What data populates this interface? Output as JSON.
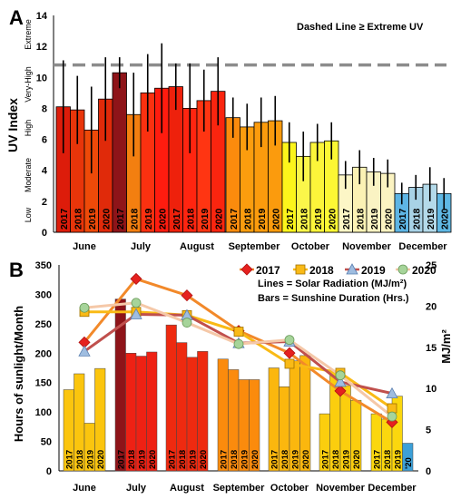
{
  "chart_data": [
    {
      "panel_label": "A",
      "type": "bar",
      "note": "Dashed Line ≥ Extreme UV",
      "ylabel": "UV Index",
      "ylim": [
        0,
        14
      ],
      "yticks": [
        0,
        2,
        4,
        6,
        8,
        10,
        12,
        14
      ],
      "uv_categories": [
        "Low",
        "Moderate",
        "High",
        "Very-High",
        "Extreme"
      ],
      "threshold": 10.8,
      "grid": false,
      "months": [
        "June",
        "July",
        "August",
        "September",
        "October",
        "November",
        "December"
      ],
      "years": [
        "2017",
        "2018",
        "2019",
        "2020"
      ],
      "series": [
        {
          "name": "2017",
          "values": [
            8.1,
            10.3,
            9.4,
            7.4,
            5.8,
            3.7,
            2.5
          ],
          "error": [
            3.0,
            1.0,
            1.5,
            1.3,
            1.3,
            0.9,
            0.7
          ]
        },
        {
          "name": "2018",
          "values": [
            7.9,
            7.6,
            8.0,
            6.8,
            4.9,
            4.2,
            2.9
          ],
          "error": [
            2.2,
            2.7,
            2.9,
            1.5,
            1.6,
            1.1,
            0.8
          ]
        },
        {
          "name": "2019",
          "values": [
            6.6,
            9.0,
            8.5,
            7.1,
            5.8,
            3.9,
            3.1
          ],
          "error": [
            2.8,
            2.5,
            2.0,
            1.6,
            1.2,
            0.9,
            1.1
          ]
        },
        {
          "name": "2020",
          "values": [
            8.6,
            9.3,
            9.1,
            7.2,
            5.9,
            3.8,
            2.5
          ],
          "error": [
            2.7,
            2.9,
            2.2,
            1.6,
            1.2,
            0.9,
            1.0
          ]
        }
      ],
      "colors": [
        [
          "#dd1c0a",
          "#e8350a",
          "#ee4a09",
          "#e02a0a"
        ],
        [
          "#8e1419",
          "#f37f10",
          "#fb3110",
          "#ff1c0f"
        ],
        [
          "#ee210c",
          "#ff2510",
          "#ff3512",
          "#fa250f"
        ],
        [
          "#fb8b0d",
          "#fb9d0e",
          "#fb9b0d",
          "#fb9b0d"
        ],
        [
          "#fcf51b",
          "#fbf64a",
          "#fcf53a",
          "#fcf734"
        ],
        [
          "#fcf6c6",
          "#fbf2b4",
          "#faf3c3",
          "#fbf3c1"
        ],
        [
          "#5eb5e4",
          "#a8d2e6",
          "#b4daea",
          "#5fb8e4"
        ]
      ]
    },
    {
      "panel_label": "B",
      "type": "bar",
      "legend_notes": [
        "Lines = Solar Radiation (MJ/m²)",
        "Bars = Sunshine Duration (Hrs.)"
      ],
      "ylabel": "Hours of sunlight/Month",
      "y2label": "MJ/m²",
      "ylim": [
        0,
        350
      ],
      "yticks": [
        0,
        50,
        100,
        150,
        200,
        250,
        300,
        350
      ],
      "y2lim": [
        0,
        25
      ],
      "y2ticks": [
        0,
        5,
        10,
        15,
        20,
        25
      ],
      "grid": false,
      "months": [
        "June",
        "July",
        "August",
        "September",
        "October",
        "November",
        "December"
      ],
      "year_labels": [
        "2017",
        "2018",
        "2019",
        "2020"
      ],
      "last_bar_label": "'20",
      "bars": [
        {
          "name": "2017",
          "values": [
            138,
            292,
            248,
            190,
            175,
            97,
            97
          ]
        },
        {
          "name": "2018",
          "values": [
            165,
            200,
            218,
            172,
            143,
            168,
            88
          ]
        },
        {
          "name": "2019",
          "values": [
            81,
            195,
            193,
            155,
            187,
            145,
            127
          ]
        },
        {
          "name": "2020",
          "values": [
            174,
            202,
            203,
            155,
            196,
            120,
            47
          ]
        }
      ],
      "bar_colors": [
        [
          "#fbc50e",
          "#fbc50e",
          "#fbc50e",
          "#fbc50e"
        ],
        [
          "#8e1419",
          "#ee2114",
          "#ee2114",
          "#ee2114"
        ],
        [
          "#ee2a10",
          "#ee2a10",
          "#ee2a10",
          "#ee2a10"
        ],
        [
          "#fb8b0d",
          "#fb8b0d",
          "#fb8b0d",
          "#fb8b0d"
        ],
        [
          "#fbb70e",
          "#fbb70e",
          "#fbb70e",
          "#fbb70e"
        ],
        [
          "#fbce0e",
          "#fbce0e",
          "#fbce0e",
          "#fbce0e"
        ],
        [
          "#fbd70e",
          "#fbd70e",
          "#fbd70e",
          "#3ca0d8"
        ]
      ],
      "lines": [
        {
          "name": "2017",
          "marker": "diamond",
          "color": "#e5211f",
          "line_color": "#f2892a",
          "values": [
            15.6,
            23.3,
            21.3,
            17.0,
            14.3,
            9.7,
            5.9
          ]
        },
        {
          "name": "2018",
          "marker": "square",
          "color": "#f9ba16",
          "line_color": "#f9ba16",
          "values": [
            19.3,
            19.3,
            18.9,
            16.9,
            13.0,
            11.9,
            7.6
          ]
        },
        {
          "name": "2019",
          "marker": "triangle",
          "color": "#9fbde0",
          "line_color": "#c0504d",
          "values": [
            14.5,
            19.0,
            18.9,
            15.5,
            15.7,
            10.8,
            9.4
          ]
        },
        {
          "name": "2020",
          "marker": "circle",
          "color": "#a6d49a",
          "line_color": "#f5c8a8",
          "values": [
            19.8,
            20.4,
            18.0,
            15.4,
            15.9,
            11.6,
            6.6
          ]
        }
      ]
    }
  ]
}
